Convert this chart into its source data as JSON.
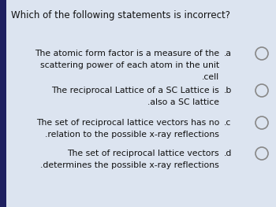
{
  "title": "Which of the following statements is incorrect?",
  "bg_color": "#dce4f0",
  "left_bar_color": "#1e2060",
  "text_color": "#111111",
  "options": [
    {
      "label": ".a",
      "lines": [
        "The atomic form factor is a measure of the",
        "scattering power of each atom in the unit",
        ".cell"
      ],
      "label_line": 0
    },
    {
      "label": ".b",
      "lines": [
        "The reciprocal Lattice of a SC Lattice is",
        ".also a SC lattice"
      ],
      "label_line": 0
    },
    {
      "label": ".c",
      "lines": [
        "The set of reciprocal lattice vectors has no",
        ".relation to the possible x-ray reflections"
      ],
      "label_line": 0
    },
    {
      "label": ".d",
      "lines": [
        "The set of reciprocal lattice vectors",
        ".determines the possible x-ray reflections"
      ],
      "label_line": 0
    }
  ],
  "title_fontsize": 8.5,
  "option_fontsize": 7.8,
  "label_fontsize": 7.8,
  "figsize": [
    3.5,
    2.63
  ],
  "dpi": 100
}
